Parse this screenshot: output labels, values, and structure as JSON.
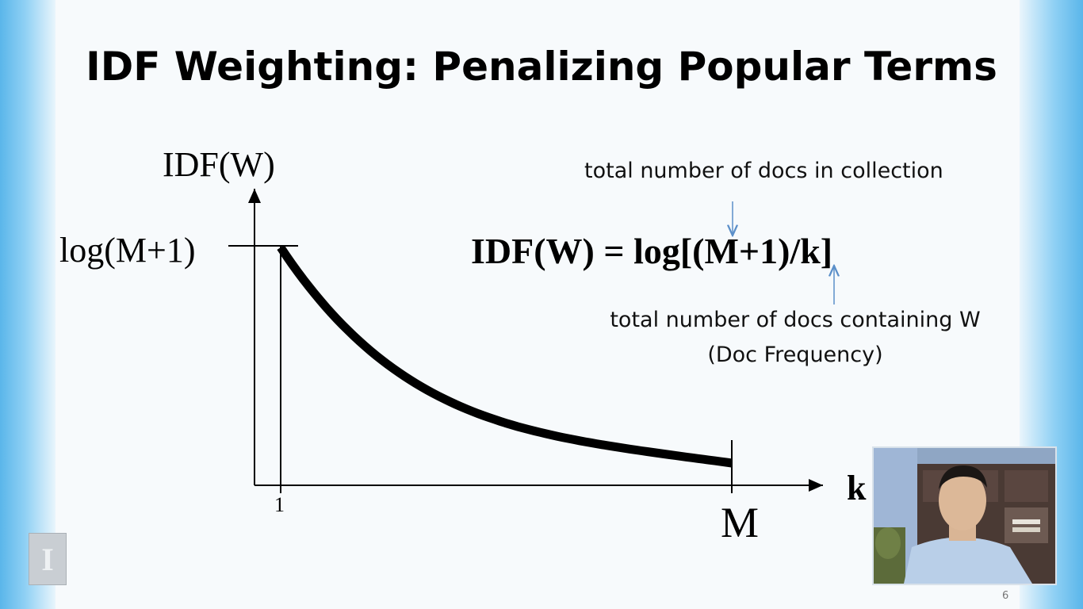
{
  "slide": {
    "title": "IDF Weighting: Penalizing Popular Terms",
    "page_number": "6"
  },
  "formula": {
    "text": "IDF(W) = log[(M+1)/k]",
    "annotation_total_docs": "total number of docs in collection",
    "annotation_doc_containing": "total number of docs containing W",
    "annotation_doc_frequency": "(Doc Frequency)"
  },
  "chart_data": {
    "type": "line",
    "ylabel": "IDF(W)",
    "xlabel": "k",
    "y_max_label": "log(M+1)",
    "x_tick_labels": [
      "1",
      "M"
    ],
    "curve": "IDF(W) = log((M+1)/k), decreasing from log(M+1) at k=1 toward low values at k=M"
  },
  "logo": {
    "letter": "I"
  },
  "colors": {
    "arrow": "#5b8fc9",
    "curve": "#000000",
    "side_accent": "#5ab6ea"
  }
}
